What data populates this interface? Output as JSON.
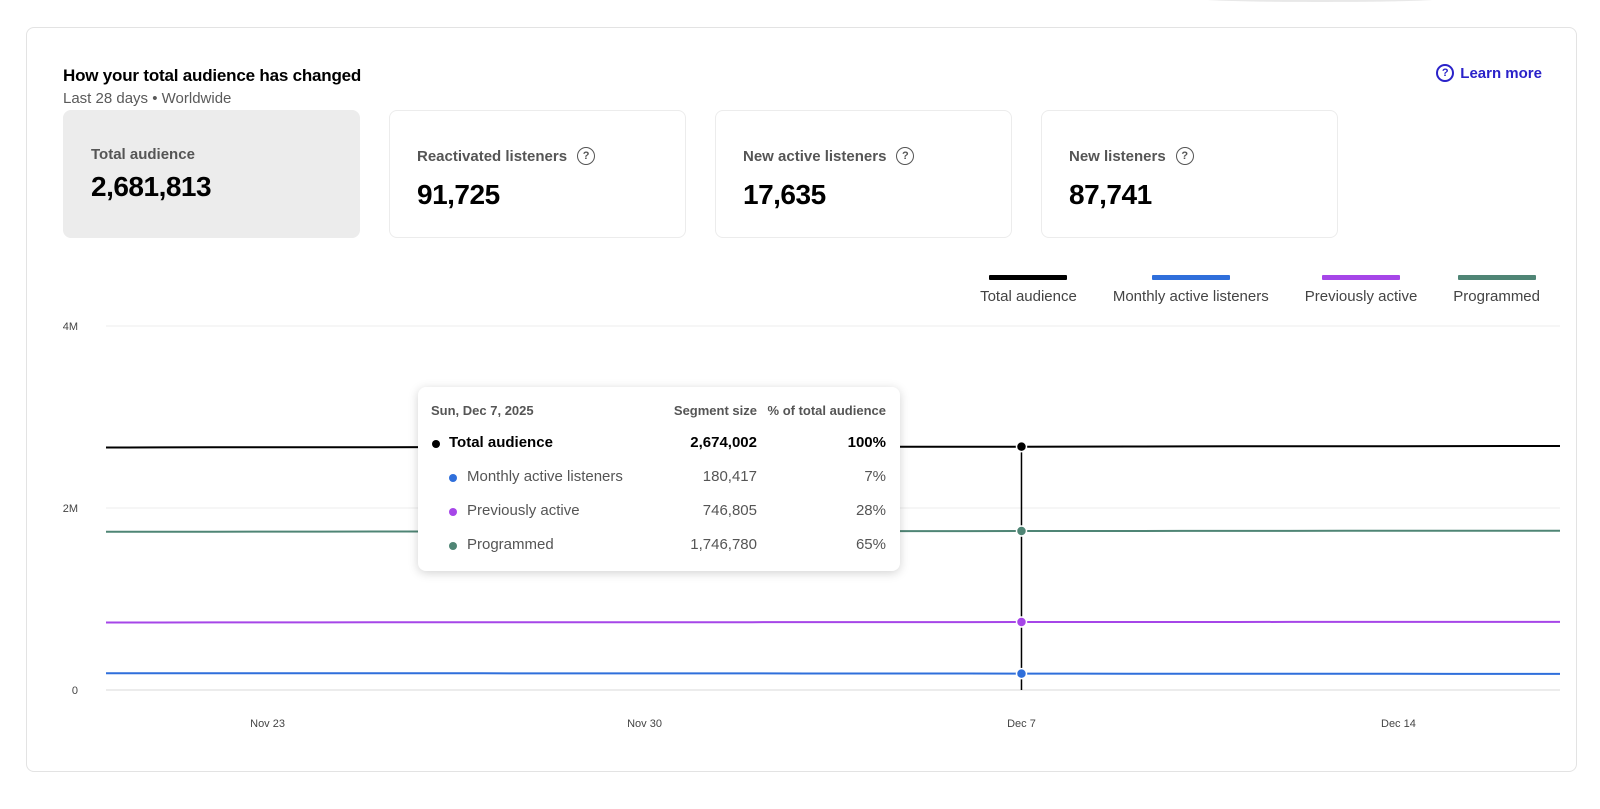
{
  "header": {
    "title": "How your total audience has changed",
    "subtitle": "Last 28 days • Worldwide",
    "learn_more": "Learn more"
  },
  "kpis": [
    {
      "label": "Total audience",
      "value": "2,681,813",
      "selected": true
    },
    {
      "label": "Reactivated listeners",
      "value": "91,725"
    },
    {
      "label": "New active listeners",
      "value": "17,635"
    },
    {
      "label": "New listeners",
      "value": "87,741"
    }
  ],
  "icons": {
    "help": "question-circle-icon"
  },
  "colors": {
    "total": "#000000",
    "monthly": "#2f6fdb",
    "previously": "#a646e8",
    "programmed": "#4f8575",
    "accent": "#2a22c9"
  },
  "tooltip": {
    "date": "Sun, Dec 7, 2025",
    "col_size": "Segment size",
    "col_pct": "% of total audience",
    "rows": [
      {
        "name": "Total audience",
        "size": "2,674,002",
        "pct": "100%"
      },
      {
        "name": "Monthly active listeners",
        "size": "180,417",
        "pct": "7%"
      },
      {
        "name": "Previously active",
        "size": "746,805",
        "pct": "28%"
      },
      {
        "name": "Programmed",
        "size": "1,746,780",
        "pct": "65%"
      }
    ]
  },
  "chart_data": {
    "type": "line",
    "x": [
      "2025-11-20",
      "2025-11-21",
      "2025-11-22",
      "2025-11-23",
      "2025-11-24",
      "2025-11-25",
      "2025-11-26",
      "2025-11-27",
      "2025-11-28",
      "2025-11-29",
      "2025-11-30",
      "2025-12-01",
      "2025-12-02",
      "2025-12-03",
      "2025-12-04",
      "2025-12-05",
      "2025-12-06",
      "2025-12-07",
      "2025-12-08",
      "2025-12-09",
      "2025-12-10",
      "2025-12-11",
      "2025-12-12",
      "2025-12-13",
      "2025-12-14",
      "2025-12-15",
      "2025-12-16",
      "2025-12-17"
    ],
    "series": [
      {
        "name": "Total audience",
        "color": "#000000",
        "values": [
          2665000,
          2666000,
          2667000,
          2667000,
          2668000,
          2668000,
          2669000,
          2669000,
          2670000,
          2670000,
          2671000,
          2671000,
          2672000,
          2672000,
          2673000,
          2673000,
          2673500,
          2674002,
          2675000,
          2676000,
          2677000,
          2678000,
          2678500,
          2679000,
          2679500,
          2680000,
          2681000,
          2681813
        ]
      },
      {
        "name": "Monthly active listeners",
        "color": "#2f6fdb",
        "values": [
          184000,
          184000,
          183800,
          183600,
          183500,
          183300,
          183100,
          183000,
          182800,
          182600,
          182400,
          182200,
          182000,
          181800,
          181600,
          181200,
          180800,
          180417,
          180000,
          179600,
          179200,
          178800,
          178400,
          178000,
          177600,
          177200,
          176800,
          176400
        ]
      },
      {
        "name": "Previously active",
        "color": "#a646e8",
        "values": [
          742000,
          742300,
          742600,
          742900,
          743200,
          743500,
          743800,
          744100,
          744400,
          744700,
          745000,
          745300,
          745600,
          745900,
          746100,
          746300,
          746600,
          746805,
          747000,
          747300,
          747500,
          747700,
          747900,
          748100,
          748300,
          748500,
          748700,
          748900
        ]
      },
      {
        "name": "Programmed",
        "color": "#4f8575",
        "values": [
          1739000,
          1739500,
          1740000,
          1740500,
          1741000,
          1741500,
          1742000,
          1742500,
          1743000,
          1743500,
          1744000,
          1744500,
          1745000,
          1745300,
          1745700,
          1746000,
          1746400,
          1746780,
          1747200,
          1747600,
          1748000,
          1748400,
          1748800,
          1749200,
          1749600,
          1750000,
          1750400,
          1750800
        ]
      }
    ],
    "y_ticks": [
      "4M",
      "2M",
      "0"
    ],
    "x_ticks": [
      "Nov 23",
      "Nov 30",
      "Dec 7",
      "Dec 14"
    ],
    "ylim": [
      0,
      4000000
    ],
    "highlight_date": "2025-12-07",
    "grid": true,
    "legend": "top-right"
  }
}
